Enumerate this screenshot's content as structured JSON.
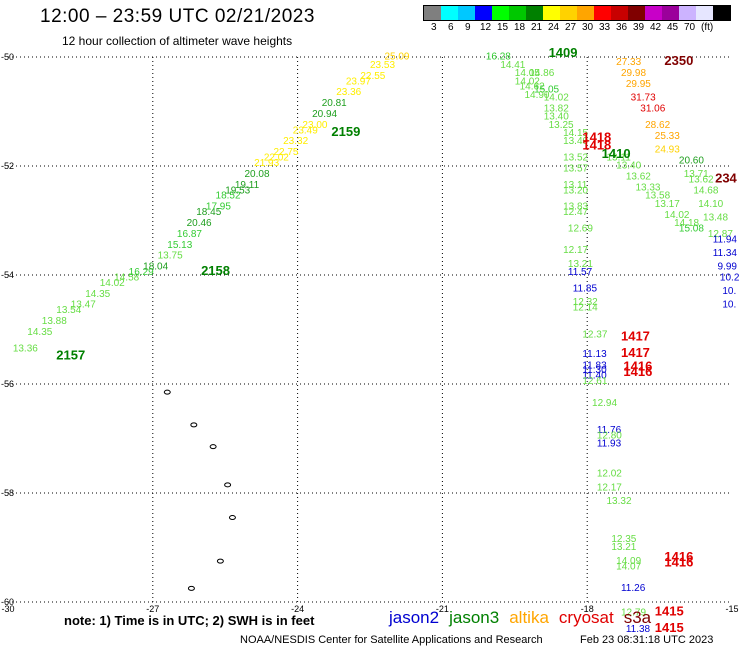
{
  "title": "12:00 – 23:59 UTC 02/21/2023",
  "subtitle": "12 hour collection of altimeter wave heights",
  "legend": {
    "colors": [
      "#7f7f7f",
      "#00ffff",
      "#00c8ff",
      "#0000ff",
      "#00ff00",
      "#00c800",
      "#008000",
      "#ffff00",
      "#ffd200",
      "#ffa500",
      "#ff0000",
      "#c80000",
      "#800000",
      "#c800c8",
      "#9b009b",
      "#ccb3ff",
      "#e6e6ff",
      "#000000"
    ],
    "labels": [
      "3",
      "6",
      "9",
      "12",
      "15",
      "18",
      "21",
      "24",
      "27",
      "30",
      "33",
      "36",
      "39",
      "42",
      "45",
      "70",
      "(ft)"
    ]
  },
  "note": "note: 1) Time is in UTC; 2) SWH is in feet",
  "missions": [
    {
      "name": "jason2",
      "color": "#0000d0"
    },
    {
      "name": "jason3",
      "color": "#008000"
    },
    {
      "name": "altika",
      "color": "#ffa500"
    },
    {
      "name": "cryosat",
      "color": "#e00000"
    },
    {
      "name": "s3a",
      "color": "#800000"
    }
  ],
  "credit": "NOAA/NESDIS Center for Satellite Applications and Research",
  "timestamp": "Feb 23 08:31:18 UTC 2023",
  "chart_data": {
    "type": "scatter",
    "x_axis": {
      "range": [
        -30,
        -15
      ],
      "ticks": [
        "-30",
        "-27",
        "-24",
        "-21",
        "-18",
        "-15"
      ]
    },
    "y_axis": {
      "range": [
        -60,
        -50
      ],
      "ticks": [
        "-50",
        "-52",
        "-54",
        "-56",
        "-58",
        "-60"
      ]
    },
    "grid": true,
    "points": [
      {
        "lon": -29.9,
        "lat": -55.4,
        "v": "13.36",
        "c": "#66dd44"
      },
      {
        "lon": -29.6,
        "lat": -55.1,
        "v": "14.35",
        "c": "#66dd44"
      },
      {
        "lon": -29.3,
        "lat": -54.9,
        "v": "13.88",
        "c": "#66dd44"
      },
      {
        "lon": -29.0,
        "lat": -54.7,
        "v": "13.54",
        "c": "#66dd44"
      },
      {
        "lon": -28.7,
        "lat": -54.6,
        "v": "13.47",
        "c": "#66dd44"
      },
      {
        "lon": -28.4,
        "lat": -54.4,
        "v": "14.35",
        "c": "#66dd44"
      },
      {
        "lon": -28.1,
        "lat": -54.2,
        "v": "14.02",
        "c": "#66dd44"
      },
      {
        "lon": -27.8,
        "lat": -54.1,
        "v": "14.58",
        "c": "#66dd44"
      },
      {
        "lon": -27.5,
        "lat": -54.0,
        "v": "16.29",
        "c": "#33cc33"
      },
      {
        "lon": -27.2,
        "lat": -53.9,
        "v": "18.04",
        "c": "#1e9e1e"
      },
      {
        "lon": -26.9,
        "lat": -53.7,
        "v": "13.75",
        "c": "#66dd44"
      },
      {
        "lon": -26.7,
        "lat": -53.5,
        "v": "15.13",
        "c": "#33cc33"
      },
      {
        "lon": -26.5,
        "lat": -53.3,
        "v": "16.87",
        "c": "#33cc33"
      },
      {
        "lon": -26.3,
        "lat": -53.1,
        "v": "20.46",
        "c": "#1e9e1e"
      },
      {
        "lon": -26.1,
        "lat": -52.9,
        "v": "18.45",
        "c": "#1e9e1e"
      },
      {
        "lon": -25.9,
        "lat": -52.8,
        "v": "17.95",
        "c": "#33cc33"
      },
      {
        "lon": -25.7,
        "lat": -52.6,
        "v": "18.52",
        "c": "#33cc33"
      },
      {
        "lon": -25.5,
        "lat": -52.5,
        "v": "19.53",
        "c": "#1e9e1e"
      },
      {
        "lon": -25.3,
        "lat": -52.4,
        "v": "19.11",
        "c": "#1e9e1e"
      },
      {
        "lon": -25.1,
        "lat": -52.2,
        "v": "20.08",
        "c": "#1e9e1e"
      },
      {
        "lon": -24.9,
        "lat": -52.0,
        "v": "21.93",
        "c": "#ffee00"
      },
      {
        "lon": -24.7,
        "lat": -51.9,
        "v": "22.02",
        "c": "#ffee00"
      },
      {
        "lon": -24.5,
        "lat": -51.8,
        "v": "22.75",
        "c": "#ffee00"
      },
      {
        "lon": -24.3,
        "lat": -51.6,
        "v": "23.32",
        "c": "#ffee00"
      },
      {
        "lon": -24.1,
        "lat": -51.4,
        "v": "23.49",
        "c": "#ffee00"
      },
      {
        "lon": -23.9,
        "lat": -51.3,
        "v": "23.00",
        "c": "#ffee00"
      },
      {
        "lon": -23.7,
        "lat": -51.1,
        "v": "20.94",
        "c": "#1e9e1e"
      },
      {
        "lon": -23.5,
        "lat": -50.9,
        "v": "20.81",
        "c": "#1e9e1e"
      },
      {
        "lon": -23.2,
        "lat": -50.7,
        "v": "23.36",
        "c": "#ffee00"
      },
      {
        "lon": -23.0,
        "lat": -50.5,
        "v": "23.97",
        "c": "#ffee00"
      },
      {
        "lon": -22.7,
        "lat": -50.4,
        "v": "22.55",
        "c": "#ffee00"
      },
      {
        "lon": -22.5,
        "lat": -50.2,
        "v": "23.53",
        "c": "#ffee00"
      },
      {
        "lon": -22.2,
        "lat": -50.05,
        "v": "25.09",
        "c": "#ffd200"
      },
      {
        "lon": -20.1,
        "lat": -50.05,
        "v": "16.28",
        "c": "#33cc33"
      },
      {
        "lon": -19.8,
        "lat": -50.2,
        "v": "14.41",
        "c": "#66dd44"
      },
      {
        "lon": -19.5,
        "lat": -50.35,
        "v": "14.05",
        "c": "#66dd44"
      },
      {
        "lon": -19.2,
        "lat": -50.35,
        "v": "14.86",
        "c": "#66dd44"
      },
      {
        "lon": -19.5,
        "lat": -50.5,
        "v": "14.02",
        "c": "#66dd44"
      },
      {
        "lon": -19.4,
        "lat": -50.6,
        "v": "14.62",
        "c": "#66dd44"
      },
      {
        "lon": -19.1,
        "lat": -50.65,
        "v": "15.05",
        "c": "#33cc33"
      },
      {
        "lon": -19.3,
        "lat": -50.75,
        "v": "14.90",
        "c": "#66dd44"
      },
      {
        "lon": -18.9,
        "lat": -50.8,
        "v": "14.02",
        "c": "#66dd44"
      },
      {
        "lon": -18.9,
        "lat": -51.0,
        "v": "13.82",
        "c": "#66dd44"
      },
      {
        "lon": -18.9,
        "lat": -51.15,
        "v": "13.40",
        "c": "#66dd44"
      },
      {
        "lon": -18.8,
        "lat": -51.3,
        "v": "13.25",
        "c": "#66dd44"
      },
      {
        "lon": -18.5,
        "lat": -51.45,
        "v": "14.15",
        "c": "#66dd44"
      },
      {
        "lon": -18.5,
        "lat": -51.6,
        "v": "13.40",
        "c": "#66dd44"
      },
      {
        "lon": -18.5,
        "lat": -51.9,
        "v": "13.52",
        "c": "#66dd44"
      },
      {
        "lon": -18.5,
        "lat": -52.1,
        "v": "13.57",
        "c": "#66dd44"
      },
      {
        "lon": -18.5,
        "lat": -52.4,
        "v": "13.11",
        "c": "#66dd44"
      },
      {
        "lon": -18.5,
        "lat": -52.5,
        "v": "13.20",
        "c": "#66dd44"
      },
      {
        "lon": -18.5,
        "lat": -52.8,
        "v": "13.83",
        "c": "#66dd44"
      },
      {
        "lon": -18.5,
        "lat": -52.9,
        "v": "12.47",
        "c": "#66dd44"
      },
      {
        "lon": -18.4,
        "lat": -53.2,
        "v": "12.69",
        "c": "#66dd44"
      },
      {
        "lon": -18.5,
        "lat": -53.6,
        "v": "12.17",
        "c": "#66dd44"
      },
      {
        "lon": -18.4,
        "lat": -53.85,
        "v": "13.21",
        "c": "#66dd44"
      },
      {
        "lon": -18.4,
        "lat": -54.0,
        "v": "11.57",
        "c": "#0000d0"
      },
      {
        "lon": -18.3,
        "lat": -54.3,
        "v": "11.85",
        "c": "#0000d0"
      },
      {
        "lon": -18.3,
        "lat": -54.55,
        "v": "12.32",
        "c": "#66dd44"
      },
      {
        "lon": -18.3,
        "lat": -54.65,
        "v": "12.14",
        "c": "#66dd44"
      },
      {
        "lon": -18.1,
        "lat": -55.15,
        "v": "12.37",
        "c": "#66dd44"
      },
      {
        "lon": -18.1,
        "lat": -55.5,
        "v": "11.13",
        "c": "#0000d0"
      },
      {
        "lon": -18.1,
        "lat": -55.72,
        "v": "11.83",
        "c": "#0000d0"
      },
      {
        "lon": -18.1,
        "lat": -55.8,
        "v": "11.30",
        "c": "#0000d0"
      },
      {
        "lon": -18.1,
        "lat": -55.9,
        "v": "11.40",
        "c": "#0000d0"
      },
      {
        "lon": -18.1,
        "lat": -56.0,
        "v": "12.61",
        "c": "#66dd44"
      },
      {
        "lon": -17.9,
        "lat": -56.4,
        "v": "12.94",
        "c": "#66dd44"
      },
      {
        "lon": -17.8,
        "lat": -56.9,
        "v": "11.76",
        "c": "#0000d0"
      },
      {
        "lon": -17.8,
        "lat": -57.0,
        "v": "12.80",
        "c": "#66dd44"
      },
      {
        "lon": -17.8,
        "lat": -57.15,
        "v": "11.93",
        "c": "#0000d0"
      },
      {
        "lon": -17.8,
        "lat": -57.7,
        "v": "12.02",
        "c": "#66dd44"
      },
      {
        "lon": -17.8,
        "lat": -57.95,
        "v": "12.17",
        "c": "#66dd44"
      },
      {
        "lon": -17.6,
        "lat": -58.2,
        "v": "13.32",
        "c": "#66dd44"
      },
      {
        "lon": -17.5,
        "lat": -58.9,
        "v": "12.35",
        "c": "#66dd44"
      },
      {
        "lon": -17.5,
        "lat": -59.05,
        "v": "13.21",
        "c": "#66dd44"
      },
      {
        "lon": -17.4,
        "lat": -59.3,
        "v": "14.09",
        "c": "#66dd44"
      },
      {
        "lon": -17.4,
        "lat": -59.4,
        "v": "14.07",
        "c": "#66dd44"
      },
      {
        "lon": -17.3,
        "lat": -59.8,
        "v": "11.26",
        "c": "#0000d0"
      },
      {
        "lon": -17.3,
        "lat": -60.25,
        "v": "12.79",
        "c": "#66dd44"
      },
      {
        "lon": -17.2,
        "lat": -60.55,
        "v": "11.38",
        "c": "#0000d0"
      },
      {
        "lon": -17.4,
        "lat": -50.15,
        "v": "27.33",
        "c": "#ffa500"
      },
      {
        "lon": -17.3,
        "lat": -50.35,
        "v": "29.98",
        "c": "#ffa500"
      },
      {
        "lon": -17.2,
        "lat": -50.55,
        "v": "29.95",
        "c": "#ffa500"
      },
      {
        "lon": -17.1,
        "lat": -50.8,
        "v": "31.73",
        "c": "#e00000"
      },
      {
        "lon": -16.9,
        "lat": -51.0,
        "v": "31.06",
        "c": "#e00000"
      },
      {
        "lon": -16.8,
        "lat": -51.3,
        "v": "28.62",
        "c": "#ffa500"
      },
      {
        "lon": -16.6,
        "lat": -51.5,
        "v": "25.33",
        "c": "#ffa500"
      },
      {
        "lon": -16.6,
        "lat": -51.75,
        "v": "24.93",
        "c": "#ffd200"
      },
      {
        "lon": -16.1,
        "lat": -51.95,
        "v": "20.60",
        "c": "#1e9e1e"
      },
      {
        "lon": -17.6,
        "lat": -51.9,
        "v": "13.11",
        "c": "#66dd44"
      },
      {
        "lon": -17.4,
        "lat": -52.05,
        "v": "13.40",
        "c": "#66dd44"
      },
      {
        "lon": -17.2,
        "lat": -52.25,
        "v": "13.62",
        "c": "#66dd44"
      },
      {
        "lon": -17.0,
        "lat": -52.45,
        "v": "13.33",
        "c": "#66dd44"
      },
      {
        "lon": -16.8,
        "lat": -52.6,
        "v": "13.58",
        "c": "#66dd44"
      },
      {
        "lon": -16.6,
        "lat": -52.75,
        "v": "13.17",
        "c": "#66dd44"
      },
      {
        "lon": -16.4,
        "lat": -52.95,
        "v": "14.02",
        "c": "#66dd44"
      },
      {
        "lon": -16.2,
        "lat": -53.1,
        "v": "14.18",
        "c": "#66dd44"
      },
      {
        "lon": -16.1,
        "lat": -53.2,
        "v": "15.08",
        "c": "#33cc33"
      },
      {
        "lon": -16.0,
        "lat": -52.2,
        "v": "13.71",
        "c": "#66dd44"
      },
      {
        "lon": -15.9,
        "lat": -52.3,
        "v": "13.62",
        "c": "#66dd44"
      },
      {
        "lon": -15.8,
        "lat": -52.5,
        "v": "14.68",
        "c": "#66dd44"
      },
      {
        "lon": -15.7,
        "lat": -52.75,
        "v": "14.10",
        "c": "#66dd44"
      },
      {
        "lon": -15.6,
        "lat": -53.0,
        "v": "13.48",
        "c": "#66dd44"
      },
      {
        "lon": -15.5,
        "lat": -53.3,
        "v": "12.87",
        "c": "#66dd44"
      },
      {
        "lon": -15.4,
        "lat": -53.4,
        "v": "11.94",
        "c": "#0000d0"
      },
      {
        "lon": -15.4,
        "lat": -53.65,
        "v": "11.34",
        "c": "#0000d0"
      },
      {
        "lon": -15.3,
        "lat": -53.9,
        "v": "9.99",
        "c": "#0000d0"
      },
      {
        "lon": -15.25,
        "lat": -54.1,
        "v": "10.2",
        "c": "#0000d0"
      },
      {
        "lon": -15.2,
        "lat": -54.35,
        "v": "10.",
        "c": "#0000d0"
      },
      {
        "lon": -15.2,
        "lat": -54.6,
        "v": "10.",
        "c": "#0000d0"
      }
    ],
    "pass_labels": [
      {
        "lon": -29.0,
        "lat": -55.55,
        "t": "2157",
        "c": "#008000"
      },
      {
        "lon": -26.0,
        "lat": -54.0,
        "t": "2158",
        "c": "#008000"
      },
      {
        "lon": -23.3,
        "lat": -51.45,
        "t": "2159",
        "c": "#008000"
      },
      {
        "lon": -18.8,
        "lat": -50.0,
        "t": "1409",
        "c": "#008000"
      },
      {
        "lon": -17.7,
        "lat": -51.85,
        "t": "1410",
        "c": "#008000"
      },
      {
        "lon": -18.1,
        "lat": -51.55,
        "t": "1418",
        "c": "#e00000"
      },
      {
        "lon": -18.1,
        "lat": -51.7,
        "t": "1418",
        "c": "#e00000"
      },
      {
        "lon": -17.3,
        "lat": -55.2,
        "t": "1417",
        "c": "#e00000"
      },
      {
        "lon": -17.3,
        "lat": -55.5,
        "t": "1417",
        "c": "#e00000"
      },
      {
        "lon": -17.25,
        "lat": -55.75,
        "t": "1416",
        "c": "#e00000"
      },
      {
        "lon": -17.25,
        "lat": -55.85,
        "t": "1416",
        "c": "#e00000"
      },
      {
        "lon": -16.4,
        "lat": -59.25,
        "t": "1416",
        "c": "#e00000"
      },
      {
        "lon": -16.4,
        "lat": -59.35,
        "t": "1416",
        "c": "#e00000"
      },
      {
        "lon": -16.6,
        "lat": -60.25,
        "t": "1415",
        "c": "#e00000"
      },
      {
        "lon": -16.6,
        "lat": -60.55,
        "t": "1415",
        "c": "#e00000"
      },
      {
        "lon": -16.4,
        "lat": -50.15,
        "t": "2350",
        "c": "#800000"
      },
      {
        "lon": -15.35,
        "lat": -52.3,
        "t": "234",
        "c": "#800000"
      }
    ],
    "islands": [
      {
        "lon": -26.7,
        "lat": -56.15
      },
      {
        "lon": -26.15,
        "lat": -56.75
      },
      {
        "lon": -25.75,
        "lat": -57.15
      },
      {
        "lon": -25.45,
        "lat": -57.85
      },
      {
        "lon": -25.35,
        "lat": -58.45
      },
      {
        "lon": -25.6,
        "lat": -59.25
      },
      {
        "lon": -26.2,
        "lat": -59.75
      }
    ]
  }
}
